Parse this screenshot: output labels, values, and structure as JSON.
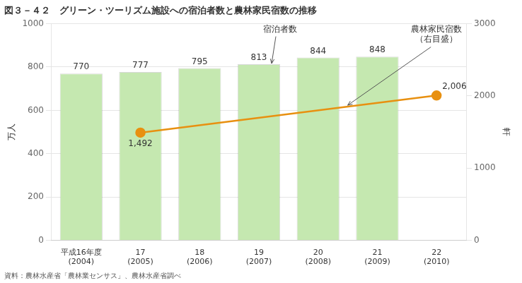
{
  "chart_data": {
    "type": "bar",
    "title": "図３－４２　グリーン・ツーリズム施設への宿泊者数と農林家民宿数の推移",
    "source": "資料：農林水産省「農林業センサス」、農林水産省調べ",
    "categories": [
      "平成16年度\n(2004)",
      "17\n(2005)",
      "18\n(2006)",
      "19\n(2007)",
      "20\n(2008)",
      "21\n(2009)",
      "22\n(2010)"
    ],
    "series": [
      {
        "type": "bar",
        "color": "#c5e8b0",
        "data_labels": true,
        "values": [
          770,
          777,
          795,
          813,
          844,
          848,
          null
        ]
      },
      {
        "type": "line",
        "axis": "y2",
        "color": "#e89010",
        "marker": "circle",
        "data_labels": true,
        "values": [
          null,
          1492,
          null,
          null,
          null,
          null,
          2006
        ],
        "value_labels": [
          null,
          "1,492",
          null,
          null,
          null,
          null,
          "2,006"
        ]
      }
    ],
    "annotations": [
      {
        "text": "宿泊者数"
      },
      {
        "text": "農林家民宿数\n（右目盛）"
      }
    ],
    "ylabel": "万人",
    "y2label": "軒",
    "ylim": [
      0,
      1000
    ],
    "yticks": [
      0,
      200,
      400,
      600,
      800,
      1000
    ],
    "y2lim": [
      0,
      3000
    ],
    "y2ticks": [
      0,
      1000,
      2000,
      3000
    ],
    "grid": true
  }
}
